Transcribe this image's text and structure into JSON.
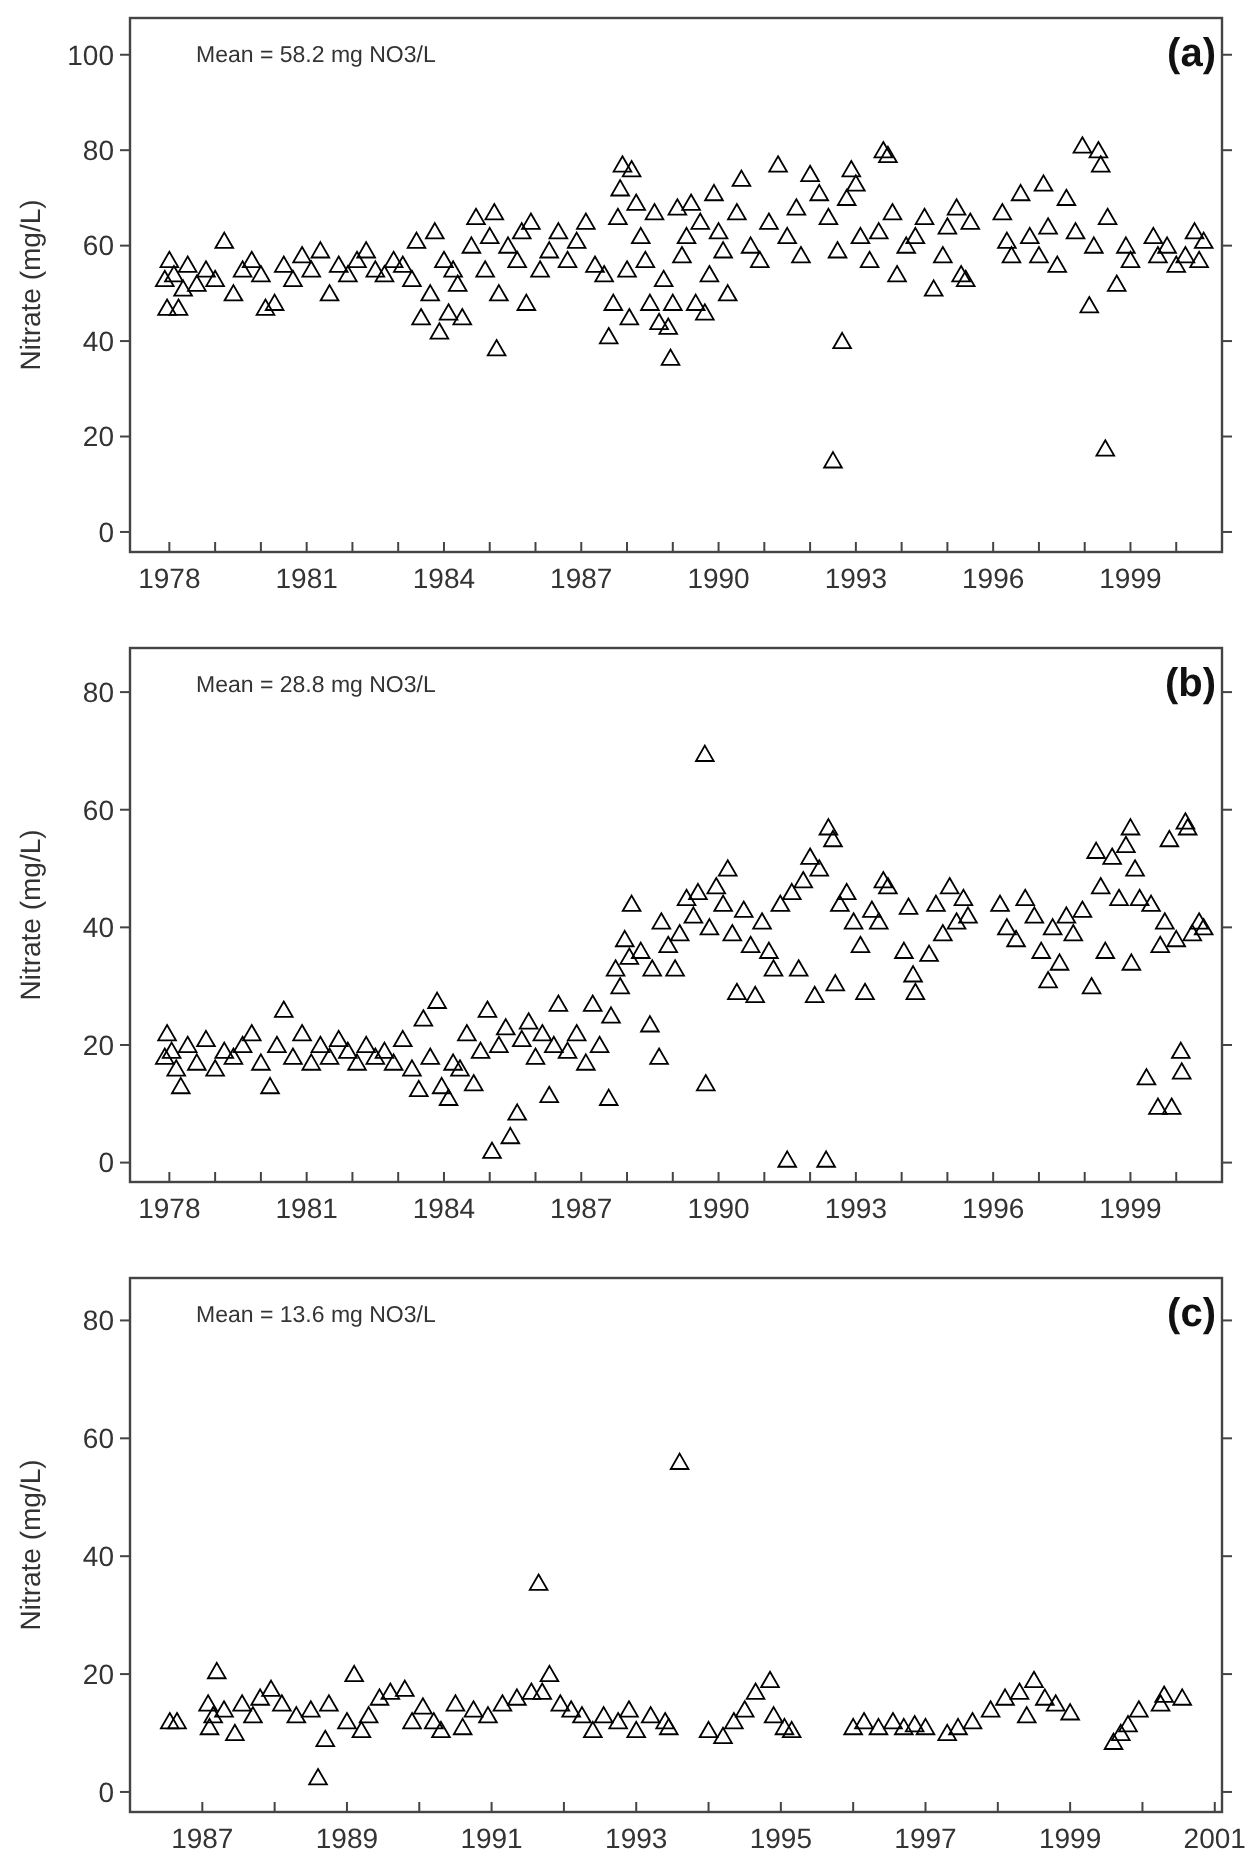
{
  "chart_data": [
    {
      "type": "scatter",
      "title": "(a)",
      "ylabel": "Nitrate (mg/L)",
      "annotations": [
        "Mean = 58.2 mg NO3/L"
      ],
      "marker": "triangle",
      "color": "#000000",
      "grid": false,
      "xlim": [
        1977.14,
        2001
      ],
      "ylim": [
        -4.2,
        107.7
      ],
      "xticks": [
        1978,
        {
          "value": 1979,
          "label": null
        },
        {
          "value": 1980,
          "label": null
        },
        1981,
        {
          "value": 1982,
          "label": null
        },
        {
          "value": 1983,
          "label": null
        },
        1984,
        {
          "value": 1985,
          "label": null
        },
        {
          "value": 1986,
          "label": null
        },
        1987,
        {
          "value": 1988,
          "label": null
        },
        {
          "value": 1989,
          "label": null
        },
        1990,
        {
          "value": 1991,
          "label": null
        },
        {
          "value": 1992,
          "label": null
        },
        1993,
        {
          "value": 1994,
          "label": null
        },
        {
          "value": 1995,
          "label": null
        },
        1996,
        {
          "value": 1997,
          "label": null
        },
        {
          "value": 1998,
          "label": null
        },
        1999,
        {
          "value": 2000,
          "label": null
        }
      ],
      "yticks": [
        0,
        20,
        40,
        60,
        80,
        100
      ],
      "x": [
        1977.9,
        1977.95,
        1978.0,
        1978.1,
        1978.2,
        1978.3,
        1978.4,
        1978.6,
        1978.8,
        1979.0,
        1979.2,
        1979.4,
        1979.6,
        1979.8,
        1980.0,
        1980.1,
        1980.3,
        1980.5,
        1980.7,
        1980.9,
        1981.1,
        1981.3,
        1981.5,
        1981.7,
        1981.9,
        1982.1,
        1982.3,
        1982.5,
        1982.7,
        1982.9,
        1983.1,
        1983.3,
        1983.4,
        1983.5,
        1983.7,
        1983.8,
        1983.9,
        1984.0,
        1984.1,
        1984.2,
        1984.3,
        1984.4,
        1984.6,
        1984.7,
        1984.9,
        1985.0,
        1985.1,
        1985.15,
        1985.2,
        1985.4,
        1985.6,
        1985.7,
        1985.8,
        1985.9,
        1986.1,
        1986.3,
        1986.5,
        1986.7,
        1986.9,
        1987.1,
        1987.3,
        1987.5,
        1987.6,
        1987.7,
        1987.8,
        1987.85,
        1987.9,
        1988.0,
        1988.05,
        1988.1,
        1988.2,
        1988.3,
        1988.4,
        1988.5,
        1988.6,
        1988.7,
        1988.8,
        1988.9,
        1988.95,
        1989.0,
        1989.1,
        1989.2,
        1989.3,
        1989.4,
        1989.5,
        1989.6,
        1989.7,
        1989.8,
        1989.9,
        1990.0,
        1990.1,
        1990.2,
        1990.4,
        1990.5,
        1990.7,
        1990.9,
        1991.1,
        1991.3,
        1991.5,
        1991.7,
        1991.8,
        1992.0,
        1992.2,
        1992.4,
        1992.5,
        1992.6,
        1992.7,
        1992.8,
        1992.9,
        1993.0,
        1993.1,
        1993.3,
        1993.5,
        1993.6,
        1993.7,
        1993.8,
        1993.9,
        1994.1,
        1994.3,
        1994.5,
        1994.7,
        1994.9,
        1995.0,
        1995.2,
        1995.3,
        1995.4,
        1995.5,
        1996.2,
        1996.3,
        1996.4,
        1996.6,
        1996.8,
        1997.0,
        1997.1,
        1997.2,
        1997.4,
        1997.6,
        1997.8,
        1997.95,
        1998.1,
        1998.2,
        1998.3,
        1998.35,
        1998.45,
        1998.5,
        1998.7,
        1998.9,
        1999.0,
        1999.5,
        1999.6,
        1999.8,
        2000.0,
        2000.2,
        2000.4,
        2000.5,
        2000.6
      ],
      "values": [
        53,
        47,
        57,
        54,
        47,
        51,
        56,
        52,
        55,
        53,
        61,
        50,
        55,
        57,
        54,
        47,
        48,
        56,
        53,
        58,
        55,
        59,
        50,
        56,
        54,
        57,
        59,
        55,
        54,
        57,
        56,
        53,
        61,
        45,
        50,
        63,
        42,
        57,
        46,
        55,
        52,
        45,
        60,
        66,
        55,
        62,
        67,
        38.5,
        50,
        60,
        57,
        63,
        48,
        65,
        55,
        59,
        63,
        57,
        61,
        65,
        56,
        54,
        41,
        48,
        66,
        72,
        77,
        55,
        45,
        76,
        69,
        62,
        57,
        48,
        67,
        44,
        53,
        43,
        36.5,
        48,
        68,
        58,
        62,
        69,
        48,
        65,
        46,
        54,
        71,
        63,
        59,
        50,
        67,
        74,
        60,
        57,
        65,
        77,
        62,
        68,
        58,
        75,
        71,
        66,
        15,
        59,
        40,
        70,
        76,
        73,
        62,
        57,
        63,
        80,
        79,
        67,
        54,
        60,
        62,
        66,
        51,
        58,
        64,
        68,
        54,
        53,
        65,
        67,
        61,
        58,
        71,
        62,
        58,
        73,
        64,
        56,
        70,
        63,
        81,
        47.5,
        60,
        80,
        77,
        17.5,
        66,
        52,
        60,
        57,
        62,
        58,
        60,
        56,
        58,
        63,
        57,
        61
      ]
    },
    {
      "type": "scatter",
      "title": "(b)",
      "ylabel": "Nitrate (mg/L)",
      "annotations": [
        "Mean = 28.8 mg NO3/L"
      ],
      "marker": "triangle",
      "color": "#000000",
      "grid": false,
      "xlim": [
        1977.14,
        2001
      ],
      "ylim": [
        -3.3,
        87.5
      ],
      "xticks": [
        1978,
        {
          "value": 1979,
          "label": null
        },
        {
          "value": 1980,
          "label": null
        },
        1981,
        {
          "value": 1982,
          "label": null
        },
        {
          "value": 1983,
          "label": null
        },
        1984,
        {
          "value": 1985,
          "label": null
        },
        {
          "value": 1986,
          "label": null
        },
        1987,
        {
          "value": 1988,
          "label": null
        },
        {
          "value": 1989,
          "label": null
        },
        1990,
        {
          "value": 1991,
          "label": null
        },
        {
          "value": 1992,
          "label": null
        },
        1993,
        {
          "value": 1994,
          "label": null
        },
        {
          "value": 1995,
          "label": null
        },
        1996,
        {
          "value": 1997,
          "label": null
        },
        {
          "value": 1998,
          "label": null
        },
        1999,
        {
          "value": 2000,
          "label": null
        }
      ],
      "yticks": [
        0,
        20,
        40,
        60,
        80
      ],
      "x": [
        1977.9,
        1977.95,
        1978.05,
        1978.15,
        1978.25,
        1978.4,
        1978.6,
        1978.8,
        1979.0,
        1979.2,
        1979.4,
        1979.6,
        1979.8,
        1980.0,
        1980.2,
        1980.35,
        1980.5,
        1980.7,
        1980.9,
        1981.1,
        1981.3,
        1981.5,
        1981.7,
        1981.9,
        1982.1,
        1982.3,
        1982.5,
        1982.7,
        1982.9,
        1983.1,
        1983.3,
        1983.45,
        1983.55,
        1983.7,
        1983.85,
        1983.95,
        1984.1,
        1984.2,
        1984.35,
        1984.5,
        1984.65,
        1984.8,
        1984.95,
        1985.05,
        1985.2,
        1985.35,
        1985.45,
        1985.6,
        1985.7,
        1985.85,
        1986.0,
        1986.15,
        1986.3,
        1986.4,
        1986.5,
        1986.7,
        1986.9,
        1987.1,
        1987.25,
        1987.4,
        1987.6,
        1987.65,
        1987.75,
        1987.85,
        1987.95,
        1988.05,
        1988.1,
        1988.3,
        1988.5,
        1988.55,
        1988.7,
        1988.75,
        1988.9,
        1989.05,
        1989.15,
        1989.3,
        1989.45,
        1989.55,
        1989.7,
        1989.72,
        1989.8,
        1989.95,
        1990.1,
        1990.2,
        1990.3,
        1990.4,
        1990.55,
        1990.7,
        1990.8,
        1990.95,
        1991.1,
        1991.2,
        1991.35,
        1991.5,
        1991.6,
        1991.75,
        1991.85,
        1992.0,
        1992.1,
        1992.2,
        1992.35,
        1992.4,
        1992.5,
        1992.55,
        1992.65,
        1992.8,
        1992.95,
        1993.1,
        1993.2,
        1993.35,
        1993.5,
        1993.6,
        1993.7,
        1994.05,
        1994.15,
        1994.25,
        1994.3,
        1994.6,
        1994.75,
        1994.9,
        1995.05,
        1995.2,
        1995.35,
        1995.45,
        1996.15,
        1996.3,
        1996.5,
        1996.7,
        1996.9,
        1997.05,
        1997.2,
        1997.3,
        1997.45,
        1997.6,
        1997.75,
        1997.95,
        1998.15,
        1998.25,
        1998.35,
        1998.45,
        1998.6,
        1998.75,
        1998.9,
        1999.0,
        1999.02,
        1999.1,
        1999.2,
        1999.35,
        1999.45,
        1999.6,
        1999.65,
        1999.75,
        1999.85,
        1999.9,
        2000.0,
        2000.1,
        2000.12,
        2000.2,
        2000.25,
        2000.35,
        2000.5,
        2000.6
      ],
      "values": [
        18,
        22,
        19,
        16,
        13,
        20,
        17,
        21,
        16,
        19,
        18,
        20,
        22,
        17,
        13,
        20,
        26,
        18,
        22,
        17,
        20,
        18,
        21,
        19,
        17,
        20,
        18,
        19,
        17,
        21,
        16,
        12.5,
        24.5,
        18,
        27.5,
        13,
        11,
        17,
        16,
        22,
        13.5,
        19,
        26,
        2,
        20,
        23,
        4.5,
        8.5,
        21,
        24,
        18,
        22,
        11.5,
        20,
        27,
        19,
        22,
        17,
        27,
        20,
        11,
        25,
        33,
        30,
        38,
        35,
        44,
        36,
        23.5,
        33,
        18,
        41,
        37,
        33,
        39,
        45,
        42,
        46,
        69.5,
        13.5,
        40,
        47,
        44,
        50,
        39,
        29,
        43,
        37,
        28.5,
        41,
        36,
        33,
        44,
        0.5,
        46,
        33,
        48,
        52,
        28.5,
        50,
        0.5,
        57,
        55,
        30.5,
        44,
        46,
        41,
        37,
        29,
        43,
        41,
        48,
        47,
        36,
        43.5,
        32,
        29,
        35.5,
        44,
        39,
        47,
        41,
        45,
        42,
        44,
        40,
        38,
        45,
        42,
        36,
        31,
        40,
        34,
        42,
        39,
        43,
        30,
        53,
        47,
        36,
        52,
        45,
        54,
        57,
        34,
        50,
        45,
        14.5,
        44,
        9.5,
        37,
        41,
        55,
        9.5,
        38,
        19,
        15.5,
        58,
        57,
        39,
        41,
        40
      ]
    },
    {
      "type": "scatter",
      "title": "(c)",
      "ylabel": "Nitrate (mg/L)",
      "annotations": [
        "Mean = 13.6 mg NO3/L"
      ],
      "marker": "triangle",
      "color": "#000000",
      "grid": false,
      "xlim": [
        1986,
        2001.1
      ],
      "ylim": [
        -3.4,
        87.2
      ],
      "xticks": [
        1987,
        {
          "value": 1988,
          "label": null
        },
        1989,
        {
          "value": 1990,
          "label": null
        },
        1991,
        {
          "value": 1992,
          "label": null
        },
        1993,
        {
          "value": 1994,
          "label": null
        },
        1995,
        {
          "value": 1996,
          "label": null
        },
        1997,
        {
          "value": 1998,
          "label": null
        },
        1999,
        {
          "value": 2000,
          "label": null
        },
        2001
      ],
      "yticks": [
        0,
        20,
        40,
        60,
        80
      ],
      "x": [
        1986.55,
        1986.65,
        1987.08,
        1987.1,
        1987.15,
        1987.2,
        1987.3,
        1987.45,
        1987.55,
        1987.7,
        1987.8,
        1987.95,
        1988.1,
        1988.3,
        1988.5,
        1988.6,
        1988.7,
        1988.75,
        1989.0,
        1989.1,
        1989.2,
        1989.3,
        1989.45,
        1989.6,
        1989.8,
        1989.9,
        1990.05,
        1990.2,
        1990.3,
        1990.5,
        1990.6,
        1990.75,
        1990.95,
        1991.15,
        1991.35,
        1991.55,
        1991.65,
        1991.7,
        1991.8,
        1991.95,
        1992.1,
        1992.25,
        1992.4,
        1992.55,
        1992.75,
        1992.9,
        1993.0,
        1993.2,
        1993.4,
        1993.45,
        1993.6,
        1994.0,
        1994.2,
        1994.35,
        1994.5,
        1994.65,
        1994.85,
        1994.9,
        1995.05,
        1995.15,
        1996.0,
        1996.15,
        1996.35,
        1996.55,
        1996.7,
        1996.85,
        1997.0,
        1997.3,
        1997.45,
        1997.65,
        1997.9,
        1998.1,
        1998.3,
        1998.4,
        1998.5,
        1998.65,
        1998.8,
        1999.0,
        1999.6,
        1999.7,
        1999.8,
        1999.95,
        2000.25,
        2000.3,
        2000.55
      ],
      "values": [
        12,
        12,
        15,
        11,
        13,
        20.5,
        14,
        10,
        15,
        13,
        16,
        17.5,
        15,
        13,
        14,
        2.5,
        9,
        15,
        12,
        20,
        10.5,
        13,
        16,
        17,
        17.5,
        12,
        14.5,
        12,
        10.5,
        15,
        11,
        14,
        13,
        15,
        16,
        17,
        35.5,
        17,
        20,
        15,
        14,
        13,
        10.5,
        13,
        12,
        14,
        10.5,
        13,
        12,
        11,
        56,
        10.5,
        9.5,
        12,
        14,
        17,
        19,
        13,
        11,
        10.5,
        11,
        12,
        11,
        12,
        11,
        11.5,
        11,
        10,
        11,
        12,
        14,
        16,
        17,
        13,
        19,
        16,
        15,
        13.5,
        8.5,
        10,
        11.5,
        14,
        15,
        16.5,
        16
      ]
    }
  ]
}
